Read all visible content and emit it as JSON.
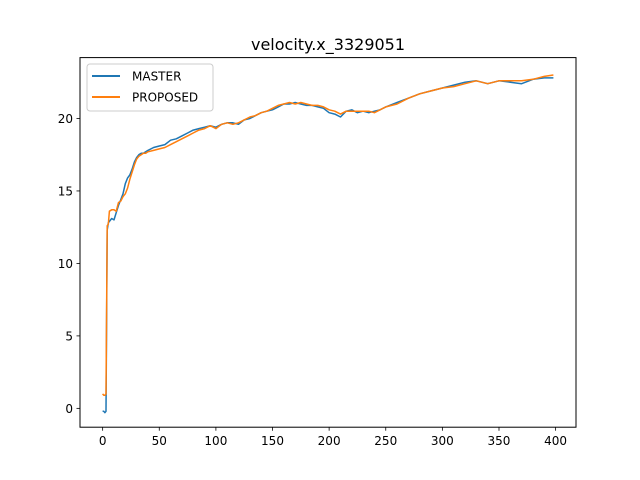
{
  "chart_data": {
    "type": "line",
    "title": "velocity.x_3329051",
    "xlabel": "",
    "ylabel": "",
    "xlim": [
      -20,
      418
    ],
    "ylim": [
      -1.3,
      24.2
    ],
    "xticks": [
      0,
      50,
      100,
      150,
      200,
      250,
      300,
      350,
      400
    ],
    "yticks": [
      0,
      5,
      10,
      15,
      20
    ],
    "grid": false,
    "legend_position": "top-left",
    "series": [
      {
        "name": "MASTER",
        "color": "#1f77b4",
        "x": [
          0,
          1,
          2,
          3,
          4,
          5,
          6,
          8,
          10,
          12,
          14,
          16,
          18,
          20,
          22,
          24,
          26,
          28,
          30,
          32,
          34,
          36,
          38,
          40,
          45,
          50,
          55,
          60,
          65,
          70,
          75,
          80,
          85,
          90,
          95,
          100,
          105,
          110,
          115,
          120,
          125,
          130,
          135,
          140,
          145,
          150,
          155,
          160,
          165,
          170,
          175,
          180,
          185,
          190,
          195,
          200,
          205,
          210,
          215,
          220,
          225,
          230,
          235,
          240,
          245,
          250,
          260,
          270,
          280,
          290,
          300,
          310,
          320,
          330,
          340,
          350,
          360,
          370,
          380,
          390,
          398
        ],
        "y": [
          -0.2,
          -0.2,
          -0.3,
          -0.2,
          12.3,
          12.8,
          12.9,
          13.1,
          13.0,
          13.5,
          14.0,
          14.4,
          14.8,
          15.5,
          15.9,
          16.1,
          16.5,
          17.0,
          17.3,
          17.5,
          17.6,
          17.6,
          17.7,
          17.8,
          18.0,
          18.1,
          18.2,
          18.5,
          18.6,
          18.8,
          19.0,
          19.2,
          19.3,
          19.4,
          19.5,
          19.4,
          19.6,
          19.7,
          19.7,
          19.6,
          19.9,
          20.0,
          20.2,
          20.4,
          20.5,
          20.6,
          20.8,
          21.0,
          21.0,
          21.1,
          21.0,
          20.9,
          20.9,
          20.8,
          20.7,
          20.4,
          20.3,
          20.1,
          20.5,
          20.6,
          20.4,
          20.5,
          20.4,
          20.5,
          20.6,
          20.8,
          21.1,
          21.4,
          21.7,
          21.9,
          22.1,
          22.3,
          22.5,
          22.6,
          22.4,
          22.6,
          22.5,
          22.4,
          22.7,
          22.8,
          22.8
        ]
      },
      {
        "name": "PROPOSED",
        "color": "#ff7f0e",
        "x": [
          0,
          1,
          2,
          3,
          4,
          5,
          6,
          8,
          10,
          12,
          14,
          16,
          18,
          20,
          22,
          24,
          26,
          28,
          30,
          32,
          34,
          36,
          38,
          40,
          45,
          50,
          55,
          60,
          65,
          70,
          75,
          80,
          85,
          90,
          95,
          100,
          105,
          110,
          115,
          120,
          125,
          130,
          135,
          140,
          145,
          150,
          155,
          160,
          165,
          170,
          175,
          180,
          185,
          190,
          195,
          200,
          205,
          210,
          215,
          220,
          225,
          230,
          235,
          240,
          245,
          250,
          260,
          270,
          280,
          290,
          300,
          310,
          320,
          330,
          340,
          350,
          360,
          370,
          380,
          390,
          398
        ],
        "y": [
          1.0,
          0.9,
          0.9,
          1.0,
          12.6,
          12.7,
          13.6,
          13.7,
          13.7,
          13.6,
          14.2,
          14.3,
          14.6,
          14.8,
          15.2,
          15.8,
          16.3,
          16.8,
          17.2,
          17.4,
          17.5,
          17.6,
          17.6,
          17.7,
          17.8,
          17.9,
          18.0,
          18.2,
          18.4,
          18.6,
          18.8,
          19.0,
          19.2,
          19.3,
          19.5,
          19.3,
          19.6,
          19.7,
          19.6,
          19.7,
          19.9,
          20.1,
          20.2,
          20.4,
          20.5,
          20.7,
          20.9,
          21.0,
          21.1,
          21.0,
          21.1,
          21.0,
          20.9,
          20.9,
          20.8,
          20.6,
          20.5,
          20.3,
          20.5,
          20.5,
          20.5,
          20.5,
          20.5,
          20.4,
          20.6,
          20.8,
          21.0,
          21.4,
          21.7,
          21.9,
          22.1,
          22.2,
          22.4,
          22.6,
          22.4,
          22.6,
          22.6,
          22.6,
          22.7,
          22.9,
          23.0
        ]
      }
    ]
  }
}
